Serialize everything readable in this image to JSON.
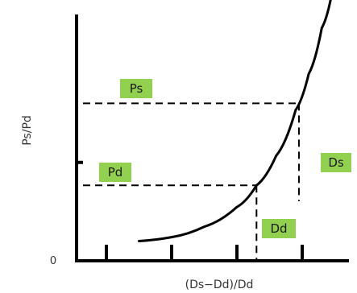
{
  "chart_data": {
    "type": "line",
    "xlabel": "(Ds−Dd)/Dd",
    "ylabel": "Ps/Pd",
    "origin_label": "0",
    "grid": false,
    "xlim": [
      0,
      4
    ],
    "ylim": [
      0,
      4
    ],
    "x_ticks": [
      0,
      1,
      2,
      3
    ],
    "y_ticks": [
      0,
      1.5,
      4
    ],
    "series": [
      {
        "values": [
          {
            "x": 0.5,
            "y": 0.3
          },
          {
            "x": 1.0,
            "y": 0.36
          },
          {
            "x": 1.5,
            "y": 0.52
          },
          {
            "x": 2.0,
            "y": 0.82
          },
          {
            "x": 2.3,
            "y": 1.15
          },
          {
            "x": 2.6,
            "y": 1.6
          },
          {
            "x": 2.9,
            "y": 2.3
          },
          {
            "x": 3.1,
            "y": 2.85
          },
          {
            "x": 3.3,
            "y": 3.55
          },
          {
            "x": 3.45,
            "y": 4.05
          }
        ]
      }
    ],
    "reference_points": [
      {
        "label": "Pd",
        "x": 2.3,
        "y": 1.15,
        "x_label": "Dd"
      },
      {
        "label": "Ps",
        "x": 2.95,
        "y": 2.4,
        "x_label": "Ds"
      }
    ],
    "colors": {
      "tag": "#92d050",
      "line": "#000000"
    }
  }
}
